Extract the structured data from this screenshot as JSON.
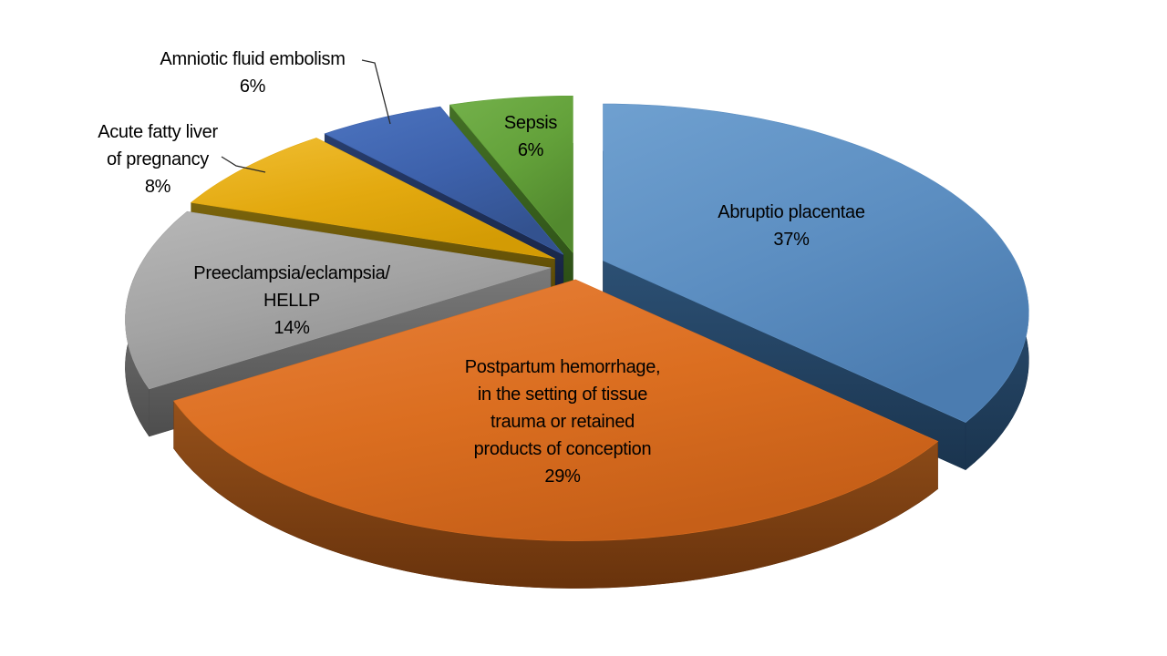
{
  "page": {
    "background": "#FFFFFF"
  },
  "chart_data": {
    "type": "pie",
    "style": "3d-exploded",
    "title": "",
    "legend_position": "none",
    "start_angle_deg": 0,
    "direction": "clockwise",
    "data_labels": "category name and percentage, inside/outside slices",
    "label_text_color": "#000000",
    "leader_line_color": "#2B2B2B",
    "categories": [
      "Abruptio placentae",
      "Postpartum hemorrhage, in the setting of tissue trauma or retained products of conception",
      "Preeclampsia/eclampsia/HELLP",
      "Acute fatty liver of pregnancy",
      "Amniotic fluid embolism",
      "Sepsis"
    ],
    "values": [
      37,
      29,
      14,
      8,
      6,
      6
    ],
    "slices": [
      {
        "id": "abruptio-placentae",
        "label_lines": [
          "Abruptio placentae"
        ],
        "pct_label": "37%",
        "value": 37,
        "colors": {
          "fill_light": "#6FA0D0",
          "fill": "#5C8EC1",
          "fill_dark": "#4B7CB0",
          "wall": "#2C5074",
          "wall_dark": "#1A344E"
        }
      },
      {
        "id": "postpartum-hemorrhage",
        "label_lines": [
          "Postpartum hemorrhage,",
          "in the setting of tissue",
          "trauma or retained",
          "products of conception"
        ],
        "pct_label": "29%",
        "value": 29,
        "colors": {
          "fill_light": "#E8813B",
          "fill": "#DB6E20",
          "fill_dark": "#C65F18",
          "wall": "#95511B",
          "wall_dark": "#69330C"
        }
      },
      {
        "id": "preeclampsia-eclampsia-hellp",
        "label_lines": [
          "Preeclampsia/eclampsia/",
          "HELLP"
        ],
        "pct_label": "14%",
        "value": 14,
        "colors": {
          "fill_light": "#B7B7B7",
          "fill": "#A3A3A3",
          "fill_dark": "#8D8D8D",
          "wall": "#7A7A7A",
          "wall_dark": "#4D4D4D"
        }
      },
      {
        "id": "acute-fatty-liver-of-pregnancy",
        "label_lines": [
          "Acute fatty liver",
          "of pregnancy"
        ],
        "pct_label": "8%",
        "value": 8,
        "colors": {
          "fill_light": "#F0BE33",
          "fill": "#E3A90F",
          "fill_dark": "#D39B04",
          "wall": "#7C650C",
          "wall_dark": "#544404"
        }
      },
      {
        "id": "amniotic-fluid-embolism",
        "label_lines": [
          "Amniotic fluid embolism"
        ],
        "pct_label": "6%",
        "value": 6,
        "colors": {
          "fill_light": "#4C74C0",
          "fill": "#3D61AB",
          "fill_dark": "#33528F",
          "wall": "#283E6E",
          "wall_dark": "#15203D"
        }
      },
      {
        "id": "sepsis",
        "label_lines": [
          "Sepsis"
        ],
        "pct_label": "6%",
        "value": 6,
        "colors": {
          "fill_light": "#74B14B",
          "fill": "#63A13A",
          "fill_dark": "#52892E",
          "wall": "#447026",
          "wall_dark": "#2B4D15"
        }
      }
    ]
  }
}
